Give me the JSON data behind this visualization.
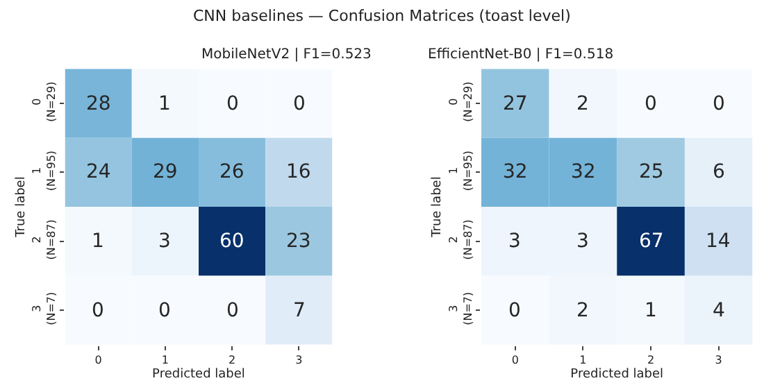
{
  "chart_data": [
    {
      "type": "heatmap",
      "title": "MobileNetV2 | F1=0.523",
      "xlabel": "Predicted label",
      "ylabel": "True label",
      "annotations": [
        "CNN baselines — Confusion Matrices (toast level)"
      ],
      "categories": [
        "0",
        "1",
        "2",
        "3"
      ],
      "y_categories": [
        "0\n(N=29)",
        "1\n(N=95)",
        "2\n(N=87)",
        "3\n(N=7)"
      ],
      "cells": [
        [
          28,
          1,
          0,
          0
        ],
        [
          24,
          29,
          26,
          16
        ],
        [
          1,
          3,
          60,
          23
        ],
        [
          0,
          0,
          0,
          7
        ]
      ],
      "data_labels": true
    },
    {
      "type": "heatmap",
      "title": "EfficientNet-B0 | F1=0.518",
      "xlabel": "Predicted label",
      "ylabel": "True label",
      "categories": [
        "0",
        "1",
        "2",
        "3"
      ],
      "y_categories": [
        "0\n(N=29)",
        "1\n(N=95)",
        "2\n(N=87)",
        "3\n(N=7)"
      ],
      "cells": [
        [
          27,
          2,
          0,
          0
        ],
        [
          32,
          32,
          25,
          6
        ],
        [
          3,
          3,
          67,
          14
        ],
        [
          0,
          2,
          1,
          4
        ]
      ],
      "data_labels": true
    }
  ]
}
